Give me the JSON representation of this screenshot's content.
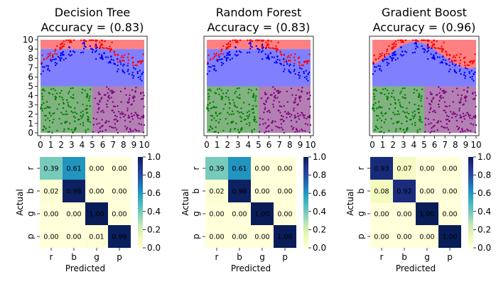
{
  "colors": {
    "r": "#ff0000",
    "b": "#0000ff",
    "g": "#008000",
    "p": "#800080",
    "region_r": "#ff8080",
    "region_b": "#8080ff",
    "region_g": "#80b380",
    "region_p": "#b380b3"
  },
  "xticks": [
    "0",
    "1",
    "2",
    "3",
    "4",
    "5",
    "6",
    "7",
    "8",
    "9",
    "10"
  ],
  "yticks": [
    "0",
    "1",
    "2",
    "3",
    "4",
    "5",
    "6",
    "7",
    "8",
    "9",
    "10"
  ],
  "cm_labels": [
    "r",
    "b",
    "g",
    "p"
  ],
  "cm_xlabel": "Predicted",
  "cm_ylabel": "Actual",
  "colorbar_ticks": [
    "0.0",
    "0.2",
    "0.4",
    "0.6",
    "0.8",
    "1.0"
  ],
  "models": [
    {
      "title_line1": "Decision Tree",
      "title_line2": "Accuracy = (0.83)",
      "confusion": [
        [
          0.39,
          0.61,
          0.0,
          0.0
        ],
        [
          0.02,
          0.98,
          0.0,
          0.0
        ],
        [
          0.0,
          0.0,
          1.0,
          0.0
        ],
        [
          0.0,
          0.0,
          0.01,
          0.99
        ]
      ],
      "cell_text": [
        [
          "0.39",
          "0.61",
          "0.00",
          "0.00"
        ],
        [
          "0.02",
          "0.98",
          "0.00",
          "0.00"
        ],
        [
          "0.00",
          "0.00",
          "1.00",
          "0.00"
        ],
        [
          "0.00",
          "0.00",
          "0.01",
          "0.99"
        ]
      ]
    },
    {
      "title_line1": "Random Forest",
      "title_line2": "Accuracy = (0.83)",
      "confusion": [
        [
          0.39,
          0.61,
          0.0,
          0.0
        ],
        [
          0.02,
          0.98,
          0.0,
          0.0
        ],
        [
          0.0,
          0.0,
          1.0,
          0.0
        ],
        [
          0.0,
          0.0,
          0.0,
          1.0
        ]
      ],
      "cell_text": [
        [
          "0.39",
          "0.61",
          "0.00",
          "0.00"
        ],
        [
          "0.02",
          "0.98",
          "0.00",
          "0.00"
        ],
        [
          "0.00",
          "0.00",
          "1.00",
          "0.00"
        ],
        [
          "0.00",
          "0.00",
          "0.00",
          "1.00"
        ]
      ]
    },
    {
      "title_line1": "Gradient Boost",
      "title_line2": "Accuracy = (0.96)",
      "confusion": [
        [
          0.93,
          0.07,
          0.0,
          0.0
        ],
        [
          0.08,
          0.92,
          0.0,
          0.0
        ],
        [
          0.0,
          0.0,
          1.0,
          0.0
        ],
        [
          0.0,
          0.0,
          0.0,
          1.0
        ]
      ],
      "cell_text": [
        [
          "0.93",
          "0.07",
          "0.00",
          "0.00"
        ],
        [
          "0.08",
          "0.92",
          "0.00",
          "0.00"
        ],
        [
          "0.00",
          "0.00",
          "1.00",
          "0.00"
        ],
        [
          "0.00",
          "0.00",
          "0.00",
          "1.00"
        ]
      ]
    }
  ],
  "chart_data": [
    {
      "type": "scatter",
      "title": "Decision Tree\nAccuracy = (0.83)",
      "xlim": [
        0,
        10
      ],
      "ylim": [
        0,
        10
      ],
      "grid": false,
      "classes": [
        "r",
        "b",
        "g",
        "p"
      ],
      "regions": [
        {
          "class": "r",
          "x": [
            0,
            10
          ],
          "y": [
            9,
            10
          ]
        },
        {
          "class": "b",
          "x": [
            0,
            10
          ],
          "y": [
            5,
            9
          ]
        },
        {
          "class": "g",
          "x": [
            0,
            5
          ],
          "y": [
            0,
            5
          ]
        },
        {
          "class": "p",
          "x": [
            5,
            10
          ],
          "y": [
            0,
            5
          ]
        }
      ]
    },
    {
      "type": "scatter",
      "title": "Random Forest\nAccuracy = (0.83)",
      "xlim": [
        0,
        10
      ],
      "ylim": [
        0,
        10
      ],
      "grid": false,
      "classes": [
        "r",
        "b",
        "g",
        "p"
      ],
      "regions": [
        {
          "class": "r",
          "x": [
            0,
            10
          ],
          "y": [
            9,
            10
          ]
        },
        {
          "class": "b",
          "x": [
            0,
            10
          ],
          "y": [
            5,
            9
          ]
        },
        {
          "class": "g",
          "x": [
            0,
            5
          ],
          "y": [
            0,
            5
          ]
        },
        {
          "class": "p",
          "x": [
            5,
            10
          ],
          "y": [
            0,
            5
          ]
        }
      ]
    },
    {
      "type": "scatter",
      "title": "Gradient Boost\nAccuracy = (0.96)",
      "xlim": [
        0,
        10
      ],
      "ylim": [
        0,
        10
      ],
      "grid": false,
      "classes": [
        "r",
        "b",
        "g",
        "p"
      ],
      "regions": [
        {
          "class": "r",
          "x": [
            0,
            10
          ],
          "y": [
            5,
            10
          ],
          "note": "above sinusoid boundary"
        },
        {
          "class": "b",
          "x": [
            0,
            10
          ],
          "y": [
            5,
            9
          ],
          "note": "below sinusoid boundary"
        },
        {
          "class": "g",
          "x": [
            0,
            5
          ],
          "y": [
            0,
            5
          ]
        },
        {
          "class": "p",
          "x": [
            5,
            10
          ],
          "y": [
            0,
            5
          ]
        }
      ]
    },
    {
      "type": "heatmap",
      "title": "",
      "xlabel": "Predicted",
      "ylabel": "Actual",
      "labels": [
        "r",
        "b",
        "g",
        "p"
      ],
      "values": [
        [
          0.39,
          0.61,
          0.0,
          0.0
        ],
        [
          0.02,
          0.98,
          0.0,
          0.0
        ],
        [
          0.0,
          0.0,
          1.0,
          0.0
        ],
        [
          0.0,
          0.0,
          0.01,
          0.99
        ]
      ],
      "colorbar_range": [
        0,
        1
      ]
    },
    {
      "type": "heatmap",
      "title": "",
      "xlabel": "Predicted",
      "ylabel": "Actual",
      "labels": [
        "r",
        "b",
        "g",
        "p"
      ],
      "values": [
        [
          0.39,
          0.61,
          0.0,
          0.0
        ],
        [
          0.02,
          0.98,
          0.0,
          0.0
        ],
        [
          0.0,
          0.0,
          1.0,
          0.0
        ],
        [
          0.0,
          0.0,
          0.0,
          1.0
        ]
      ],
      "colorbar_range": [
        0,
        1
      ]
    },
    {
      "type": "heatmap",
      "title": "",
      "xlabel": "Predicted",
      "ylabel": "Actual",
      "labels": [
        "r",
        "b",
        "g",
        "p"
      ],
      "values": [
        [
          0.93,
          0.07,
          0.0,
          0.0
        ],
        [
          0.08,
          0.92,
          0.0,
          0.0
        ],
        [
          0.0,
          0.0,
          1.0,
          0.0
        ],
        [
          0.0,
          0.0,
          0.0,
          1.0
        ]
      ],
      "colorbar_range": [
        0,
        1
      ]
    }
  ]
}
